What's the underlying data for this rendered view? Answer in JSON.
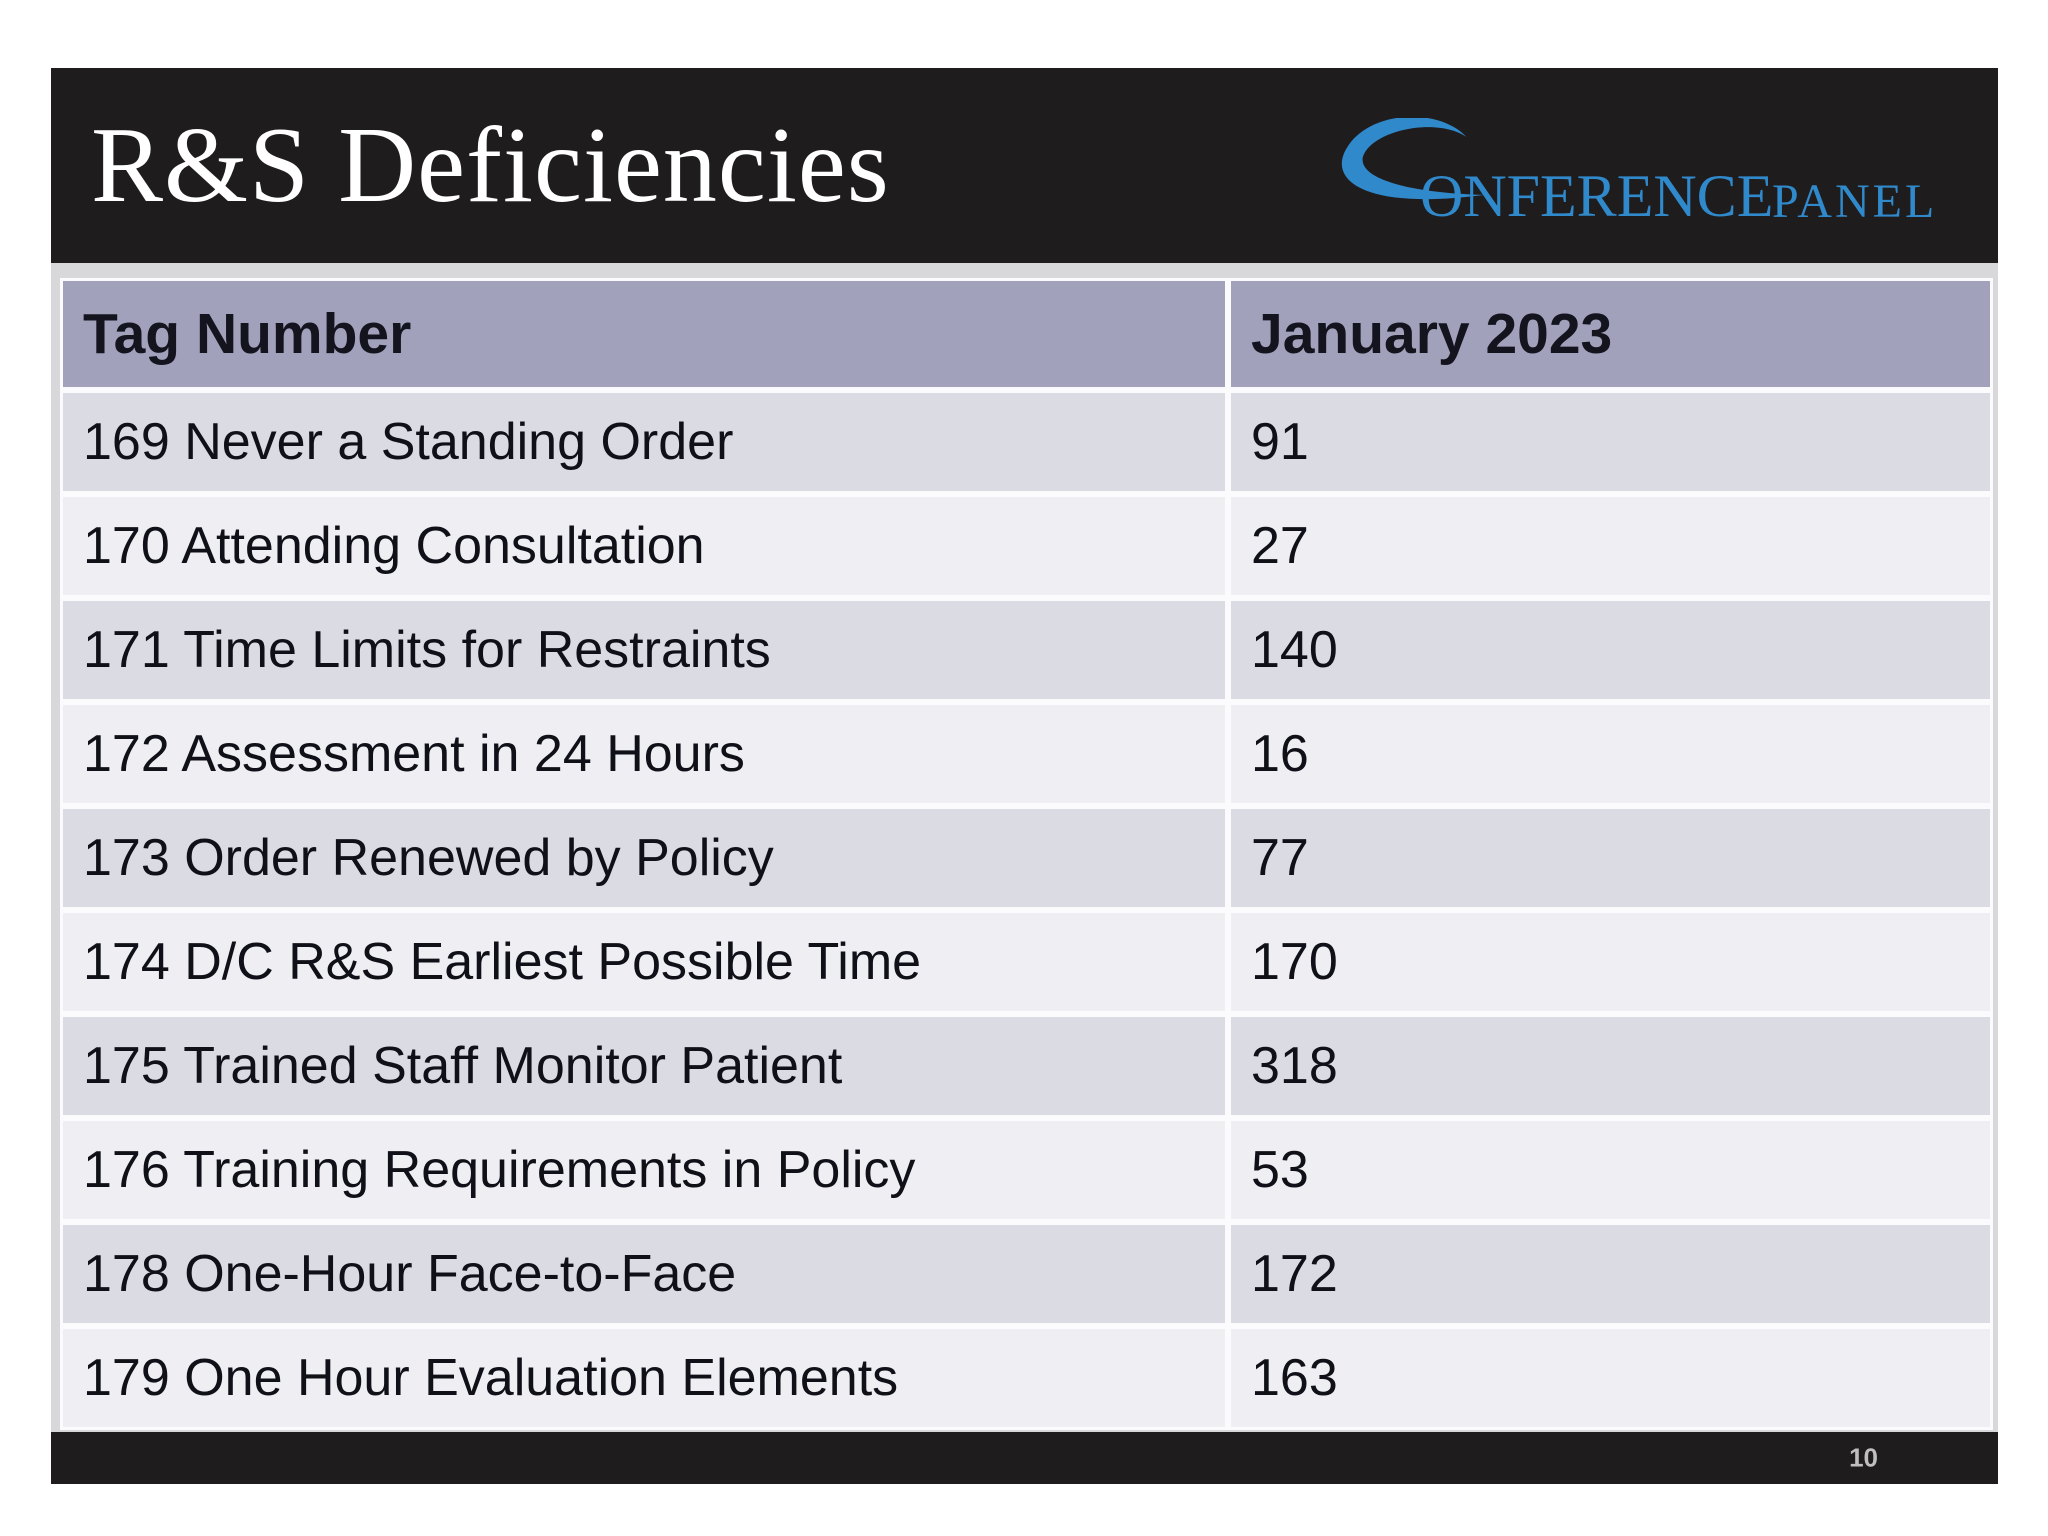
{
  "slide": {
    "title": "R&S Deficiencies",
    "page_number": "10"
  },
  "logo": {
    "icon": "conference-panel-c-swoosh",
    "word1": "ONFERENCE",
    "word2": "PANEL",
    "accent_color": "#3089ca"
  },
  "colors": {
    "band_black": "#1f1c1e",
    "table_header_bg": "#a2a1bb",
    "row_dark_bg": "#dbdbe3",
    "row_light_bg": "#eeeef3",
    "content_bg": "#d8d8da",
    "cell_text": "#101018"
  },
  "table": {
    "columns": [
      "Tag Number",
      "January 2023"
    ],
    "rows": [
      {
        "tag": "169 Never a Standing Order",
        "value": "91"
      },
      {
        "tag": "170 Attending Consultation",
        "value": "27"
      },
      {
        "tag": "171 Time Limits for Restraints",
        "value": "140"
      },
      {
        "tag": "172 Assessment in 24 Hours",
        "value": "16"
      },
      {
        "tag": "173 Order Renewed by Policy",
        "value": "77"
      },
      {
        "tag": "174 D/C R&S Earliest Possible Time",
        "value": "170"
      },
      {
        "tag": "175 Trained Staff Monitor Patient",
        "value": "318"
      },
      {
        "tag": "176 Training Requirements in Policy",
        "value": "53"
      },
      {
        "tag": "178 One-Hour Face-to-Face",
        "value": "172"
      },
      {
        "tag": "179 One Hour Evaluation Elements",
        "value": "163"
      }
    ]
  }
}
